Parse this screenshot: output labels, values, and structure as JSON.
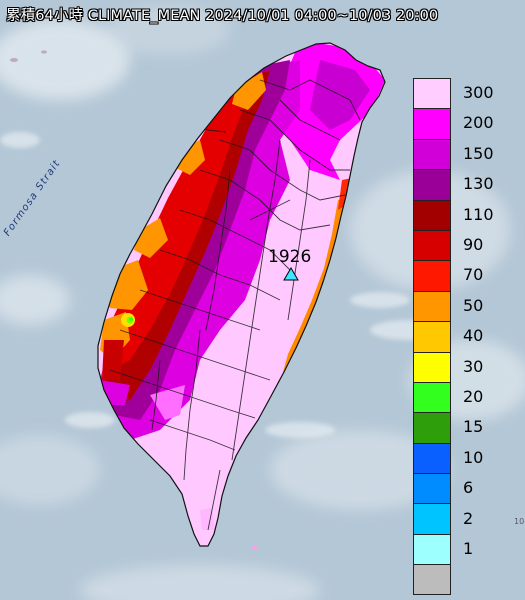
{
  "title": "累積64小時 CLIMATE_MEAN 2024/10/01 04:00~10/03 20:00",
  "strait_label": "Formosa Strait",
  "station": {
    "value": "1926",
    "marker": "triangle-marker-icon"
  },
  "edge_text": "10",
  "colors": {
    "sea": "#b5c8d6",
    "land_low": "#ffc9ff",
    "magenta": "#ff00ff",
    "purple": "#c800d2",
    "dark_purple": "#9a0094",
    "maroon": "#a10000",
    "red": "#e00000",
    "orange": "#ff9500",
    "amber": "#ffc400",
    "yellow": "#ffff00",
    "green": "#3cff1e"
  },
  "legend": {
    "items": [
      {
        "label": "300",
        "color": "#ffcdff"
      },
      {
        "label": "200",
        "color": "#ff00ff"
      },
      {
        "label": "150",
        "color": "#d100d8"
      },
      {
        "label": "130",
        "color": "#9a0098"
      },
      {
        "label": "110",
        "color": "#a20000"
      },
      {
        "label": "90",
        "color": "#d60000"
      },
      {
        "label": "70",
        "color": "#ff1800"
      },
      {
        "label": "50",
        "color": "#ff9600"
      },
      {
        "label": "40",
        "color": "#ffc800"
      },
      {
        "label": "30",
        "color": "#ffff00"
      },
      {
        "label": "20",
        "color": "#32ff1e"
      },
      {
        "label": "15",
        "color": "#2e9e0a"
      },
      {
        "label": "10",
        "color": "#0a60ff"
      },
      {
        "label": "6",
        "color": "#008cff"
      },
      {
        "label": "2",
        "color": "#00c4ff"
      },
      {
        "label": "1",
        "color": "#9effff"
      },
      {
        "label": "",
        "color": "#bcbcbc"
      }
    ]
  }
}
